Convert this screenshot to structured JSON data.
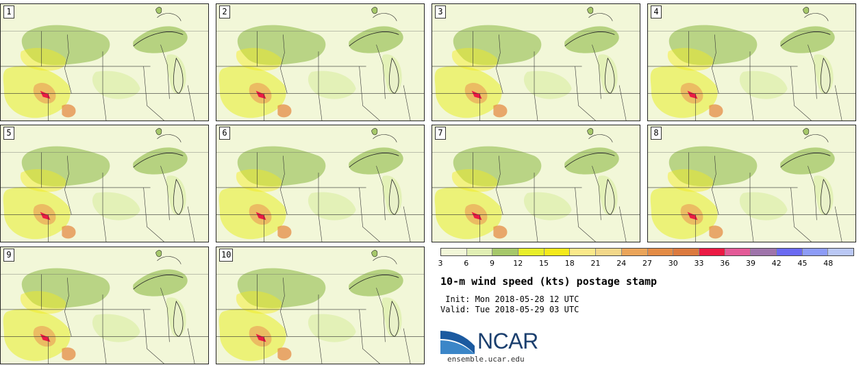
{
  "panels": [
    {
      "label": "1"
    },
    {
      "label": "2"
    },
    {
      "label": "3"
    },
    {
      "label": "4"
    },
    {
      "label": "5"
    },
    {
      "label": "6"
    },
    {
      "label": "7"
    },
    {
      "label": "8"
    },
    {
      "label": "9"
    },
    {
      "label": "10"
    }
  ],
  "colorbar": {
    "ticks": [
      "3",
      "6",
      "9",
      "12",
      "15",
      "18",
      "21",
      "24",
      "27",
      "30",
      "33",
      "36",
      "39",
      "42",
      "45",
      "48"
    ],
    "colors": [
      "#f2f7d8",
      "#e1efb4",
      "#a6c86a",
      "#e8ef2a",
      "#f5ea1b",
      "#fbe98a",
      "#f3d88a",
      "#eba55a",
      "#e48c46",
      "#dc7a3f",
      "#ec1a44",
      "#e45a98",
      "#9f74ab",
      "#6b6af2",
      "#8d9cf7",
      "#bac8f5"
    ]
  },
  "title": "10-m wind speed (kts) postage stamp",
  "init": " Init: Mon 2018-05-28 12 UTC",
  "valid": "Valid: Tue 2018-05-29 03 UTC",
  "logo": {
    "text": "NCAR",
    "url": "ensemble.ucar.edu"
  }
}
